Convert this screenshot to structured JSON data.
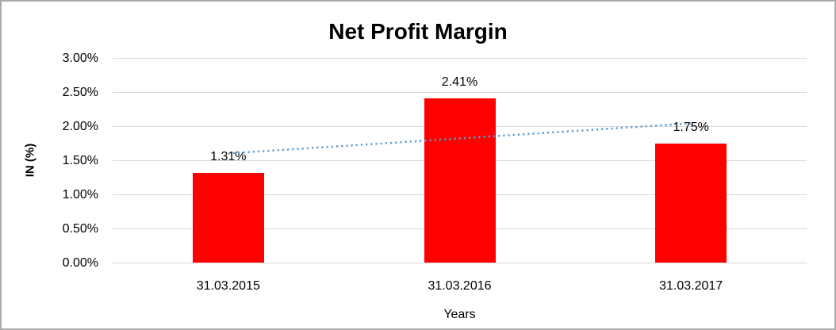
{
  "chart_data": {
    "type": "bar",
    "title": "Net Profit Margin",
    "xlabel": "Years",
    "ylabel": "IN (%)",
    "categories": [
      "31.03.2015",
      "31.03.2016",
      "31.03.2017"
    ],
    "values": [
      1.31,
      2.41,
      1.75
    ],
    "data_labels": [
      "1.31%",
      "2.41%",
      "1.75%"
    ],
    "ylim": [
      0,
      3
    ],
    "ytick_step": 0.5,
    "yticks": [
      {
        "value": 0.0,
        "label": "0.00%"
      },
      {
        "value": 0.5,
        "label": "0.50%"
      },
      {
        "value": 1.0,
        "label": "1.00%"
      },
      {
        "value": 1.5,
        "label": "1.50%"
      },
      {
        "value": 2.0,
        "label": "2.00%"
      },
      {
        "value": 2.5,
        "label": "2.50%"
      },
      {
        "value": 3.0,
        "label": "3.00%"
      }
    ],
    "grid": "horizontal",
    "legend": "none",
    "bar_color": "#FF0000",
    "trendline": {
      "type": "linear",
      "style": "dotted",
      "color": "#5B9BD5",
      "start_value": 1.6,
      "end_value": 2.04
    }
  },
  "colors": {
    "background": "#FFFFFF",
    "border": "#ABABAB",
    "gridline": "#D9D9D9",
    "text": "#000000",
    "bar": "#FF0000",
    "trendline": "#5B9BD5"
  }
}
